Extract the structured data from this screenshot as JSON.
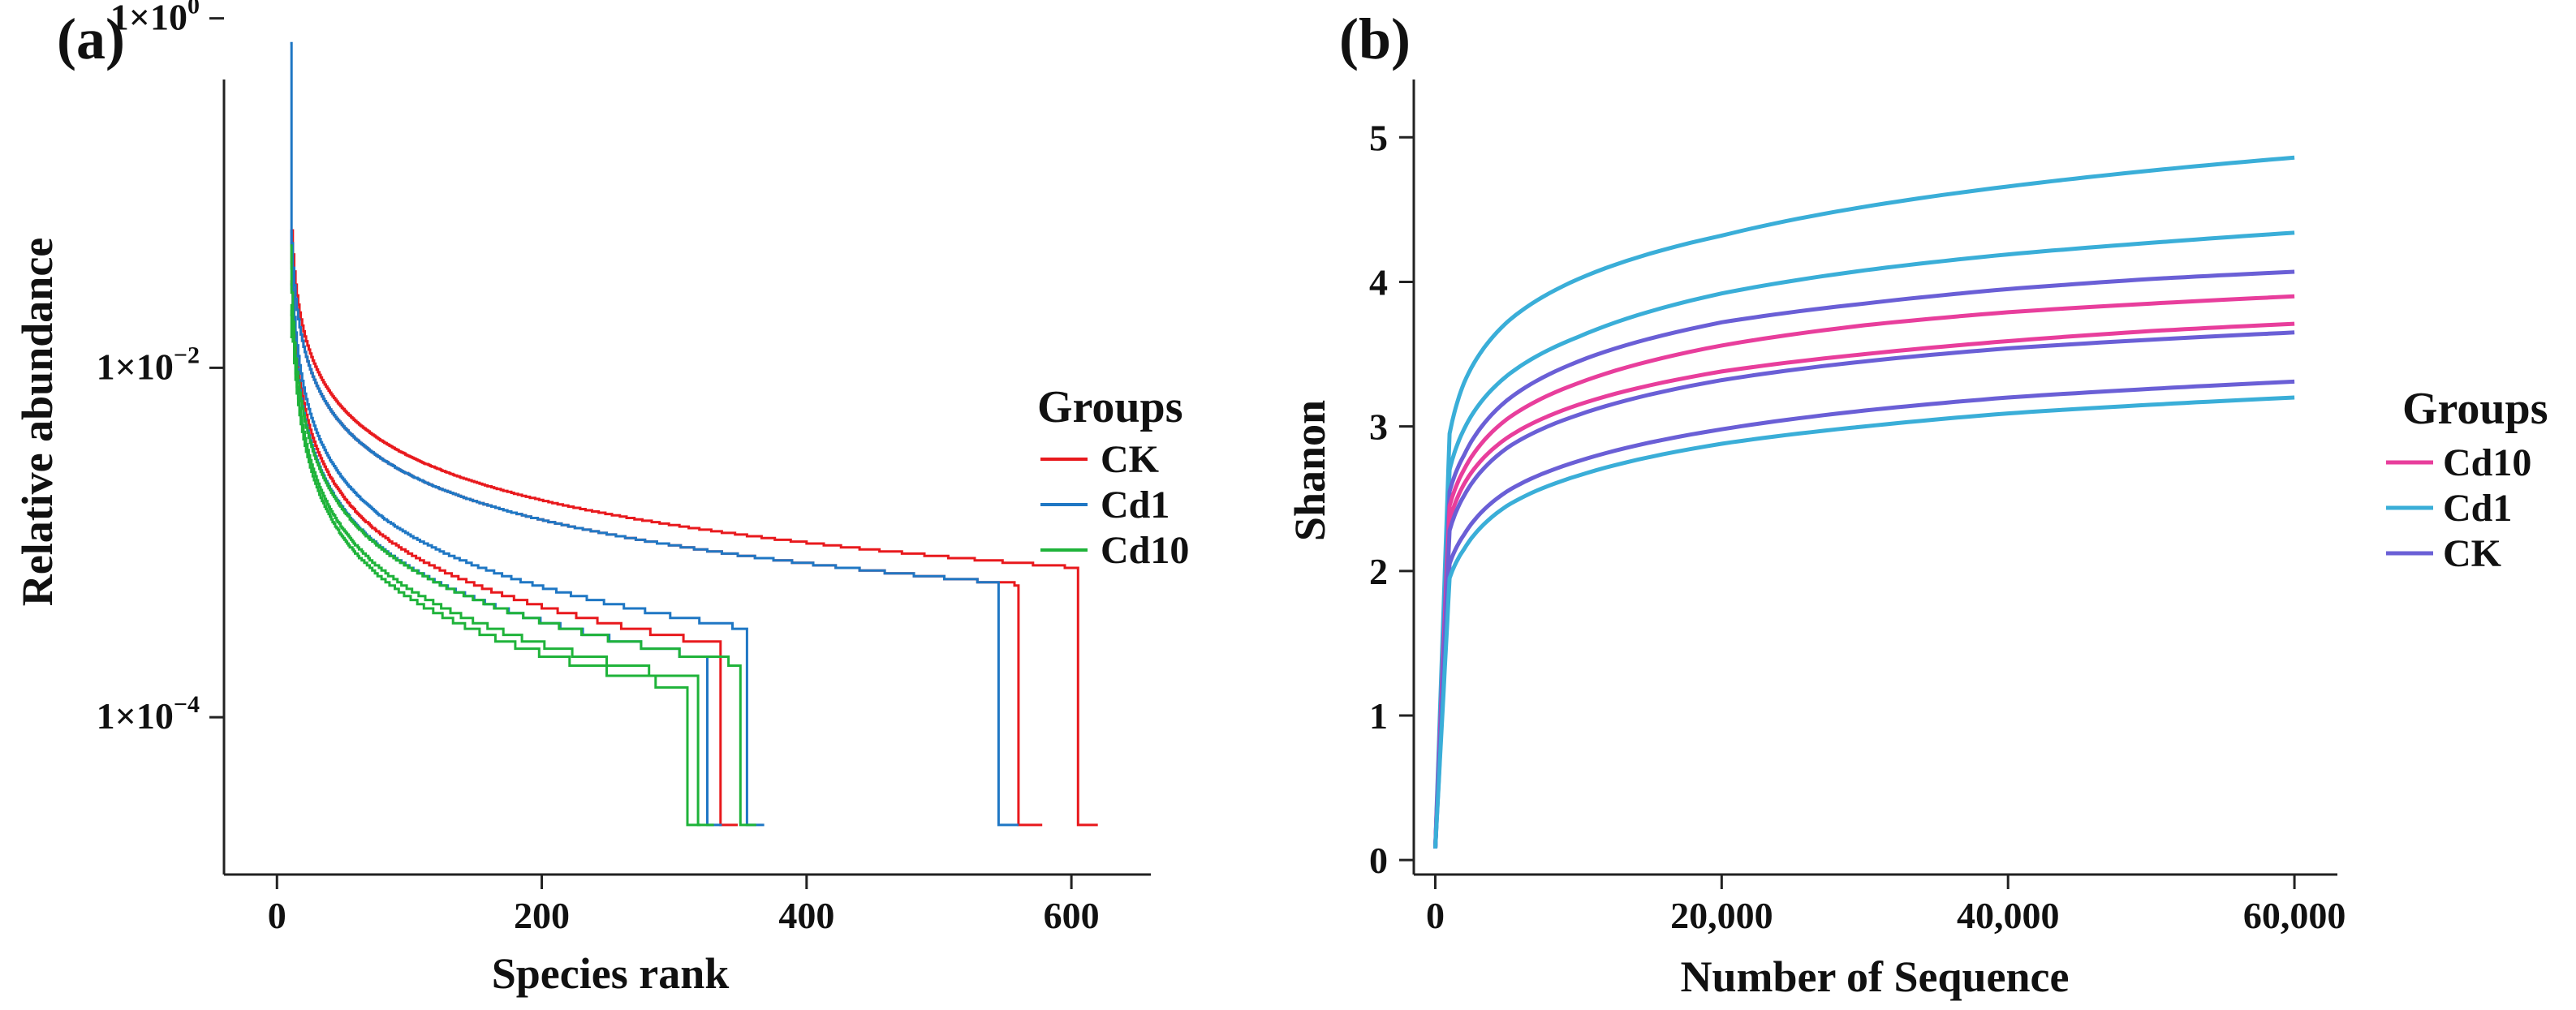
{
  "chart_data": [
    {
      "panel_label": "(a)",
      "type": "line",
      "subtype": "rank-abundance (step)",
      "xlabel": "Species rank",
      "ylabel": "Relative abundance",
      "yscale": "log",
      "xlim": [
        -40,
        660
      ],
      "ylim_log10": [
        -4.9,
        -0.35
      ],
      "xticks": [
        {
          "value": 0,
          "label": "0"
        },
        {
          "value": 200,
          "label": "200"
        },
        {
          "value": 400,
          "label": "400"
        },
        {
          "value": 600,
          "label": "600"
        }
      ],
      "yticks": [
        {
          "value": 1,
          "base": "1×10",
          "exp": "0"
        },
        {
          "value": 0.01,
          "base": "1×10",
          "exp": "−2"
        },
        {
          "value": 0.0001,
          "base": "1×10",
          "exp": "−4"
        }
      ],
      "legend": {
        "title": "Groups",
        "position": "right",
        "entries": [
          {
            "label": "CK",
            "color": "#e8191d"
          },
          {
            "label": "Cd1",
            "color": "#1f77c4"
          },
          {
            "label": "Cd10",
            "color": "#1fb33a"
          }
        ]
      },
      "series": [
        {
          "name": "CK",
          "color": "#e8191d",
          "top": 0.05,
          "max_rank": 620,
          "floor_rank": 605,
          "a": 0.105,
          "b": 0.78
        },
        {
          "name": "CK",
          "color": "#e8191d",
          "top": 0.04,
          "max_rank": 578,
          "floor_rank": 560,
          "a": 0.09,
          "b": 0.8
        },
        {
          "name": "CK",
          "color": "#e8191d",
          "top": 0.03,
          "max_rank": 348,
          "floor_rank": 335,
          "a": 0.06,
          "b": 0.94
        },
        {
          "name": "Cd1",
          "color": "#1f77c4",
          "top": 0.72,
          "max_rank": 560,
          "floor_rank": 545,
          "a": 0.09,
          "b": 0.8
        },
        {
          "name": "Cd1",
          "color": "#1f77c4",
          "top": 0.06,
          "max_rank": 368,
          "floor_rank": 355,
          "a": 0.07,
          "b": 0.92
        },
        {
          "name": "Cd1",
          "color": "#1f77c4",
          "top": 0.03,
          "max_rank": 336,
          "floor_rank": 325,
          "a": 0.055,
          "b": 0.96
        },
        {
          "name": "Cd10",
          "color": "#1fb33a",
          "top": 0.05,
          "max_rank": 362,
          "floor_rank": 350,
          "a": 0.052,
          "b": 0.95
        },
        {
          "name": "Cd10",
          "color": "#1fb33a",
          "top": 0.02,
          "max_rank": 330,
          "floor_rank": 318,
          "a": 0.045,
          "b": 0.98
        },
        {
          "name": "Cd10",
          "color": "#1fb33a",
          "top": 0.015,
          "max_rank": 320,
          "floor_rank": 310,
          "a": 0.042,
          "b": 0.99
        }
      ]
    },
    {
      "panel_label": "(b)",
      "type": "line",
      "subtype": "rarefaction curve",
      "xlabel": "Number of Sequence",
      "ylabel": "Shanon",
      "xlim": [
        -1500,
        63000
      ],
      "ylim": [
        -0.1,
        5.4
      ],
      "xticks": [
        {
          "value": 0,
          "label": "0"
        },
        {
          "value": 20000,
          "label": "20,000"
        },
        {
          "value": 40000,
          "label": "40,000"
        },
        {
          "value": 60000,
          "label": "60,000"
        }
      ],
      "yticks": [
        {
          "value": 0,
          "label": "0"
        },
        {
          "value": 1,
          "label": "1"
        },
        {
          "value": 2,
          "label": "2"
        },
        {
          "value": 3,
          "label": "3"
        },
        {
          "value": 4,
          "label": "4"
        },
        {
          "value": 5,
          "label": "5"
        }
      ],
      "legend": {
        "title": "Groups",
        "position": "right",
        "entries": [
          {
            "label": "Cd10",
            "color": "#e83e9c"
          },
          {
            "label": "Cd1",
            "color": "#3aaed8"
          },
          {
            "label": "CK",
            "color": "#6a5fd6"
          }
        ]
      },
      "series": [
        {
          "name": "Cd1",
          "color": "#3aaed8",
          "x": [
            0,
            1000,
            2000,
            5000,
            10000,
            20000,
            30000,
            40000,
            50000,
            60000
          ],
          "y": [
            0.08,
            2.95,
            3.3,
            3.72,
            4.02,
            4.32,
            4.52,
            4.66,
            4.77,
            4.86
          ]
        },
        {
          "name": "Cd1",
          "color": "#3aaed8",
          "x": [
            0,
            1000,
            2000,
            5000,
            10000,
            20000,
            30000,
            40000,
            50000,
            60000
          ],
          "y": [
            0.08,
            2.7,
            2.98,
            3.35,
            3.62,
            3.92,
            4.08,
            4.19,
            4.27,
            4.34
          ]
        },
        {
          "name": "CK",
          "color": "#6a5fd6",
          "x": [
            0,
            1000,
            2000,
            5000,
            10000,
            20000,
            30000,
            40000,
            50000,
            60000
          ],
          "y": [
            0.08,
            2.55,
            2.8,
            3.18,
            3.45,
            3.72,
            3.85,
            3.95,
            4.02,
            4.07
          ]
        },
        {
          "name": "Cd10",
          "color": "#e83e9c",
          "x": [
            0,
            1000,
            2000,
            5000,
            10000,
            20000,
            30000,
            40000,
            50000,
            60000
          ],
          "y": [
            0.08,
            2.45,
            2.7,
            3.05,
            3.3,
            3.56,
            3.7,
            3.79,
            3.85,
            3.9
          ]
        },
        {
          "name": "Cd10",
          "color": "#e83e9c",
          "x": [
            0,
            1000,
            2000,
            5000,
            10000,
            20000,
            30000,
            40000,
            50000,
            60000
          ],
          "y": [
            0.08,
            2.35,
            2.6,
            2.92,
            3.15,
            3.38,
            3.5,
            3.59,
            3.66,
            3.71
          ]
        },
        {
          "name": "CK",
          "color": "#6a5fd6",
          "x": [
            0,
            1000,
            2000,
            5000,
            10000,
            20000,
            30000,
            40000,
            50000,
            60000
          ],
          "y": [
            0.08,
            2.28,
            2.52,
            2.85,
            3.08,
            3.32,
            3.45,
            3.54,
            3.6,
            3.65
          ]
        },
        {
          "name": "CK",
          "color": "#6a5fd6",
          "x": [
            0,
            1000,
            2000,
            5000,
            10000,
            20000,
            30000,
            40000,
            50000,
            60000
          ],
          "y": [
            0.08,
            2.05,
            2.25,
            2.55,
            2.76,
            2.98,
            3.11,
            3.2,
            3.26,
            3.31
          ]
        },
        {
          "name": "Cd1",
          "color": "#3aaed8",
          "x": [
            0,
            1000,
            2000,
            5000,
            10000,
            20000,
            30000,
            40000,
            50000,
            60000
          ],
          "y": [
            0.08,
            1.95,
            2.15,
            2.45,
            2.66,
            2.88,
            3.0,
            3.09,
            3.15,
            3.2
          ]
        }
      ]
    }
  ]
}
